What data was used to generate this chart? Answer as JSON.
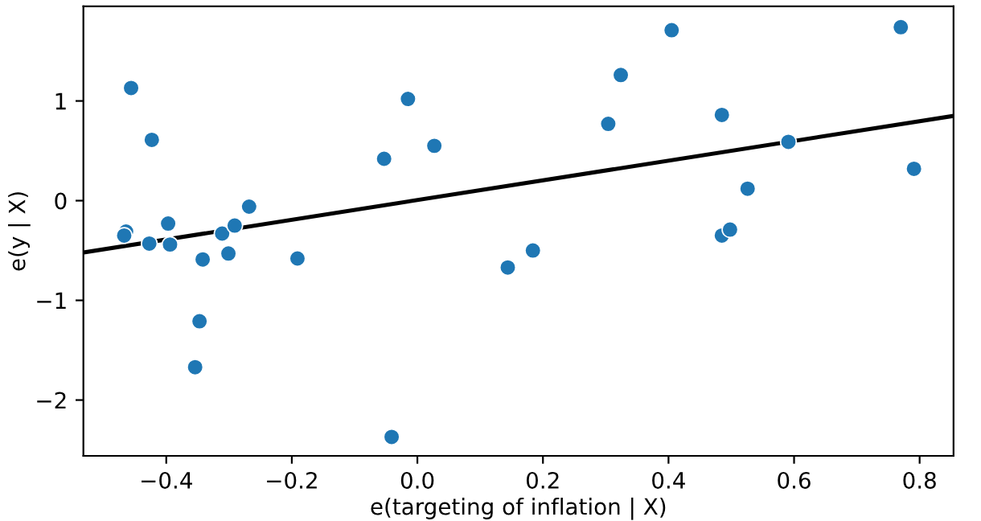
{
  "chart_data": {
    "type": "scatter",
    "xlabel": "e(targeting of inflation | X)",
    "ylabel": "e(y | X)",
    "xlim": [
      -0.532,
      0.854
    ],
    "ylim": [
      -2.56,
      1.95
    ],
    "xticks": [
      {
        "value": -0.4,
        "label": "−0.4"
      },
      {
        "value": -0.2,
        "label": "−0.2"
      },
      {
        "value": 0,
        "label": "0.0"
      },
      {
        "value": 0.2,
        "label": "0.2"
      },
      {
        "value": 0.4,
        "label": "0.4"
      },
      {
        "value": 0.6,
        "label": "0.6"
      },
      {
        "value": 0.8,
        "label": "0.8"
      }
    ],
    "yticks": [
      {
        "value": -2,
        "label": "−2"
      },
      {
        "value": -1,
        "label": "−1"
      },
      0,
      1
    ],
    "grid": false,
    "legend": false,
    "series": [
      {
        "color": "#1f77b4",
        "marker": "circle",
        "x": [
          -0.456,
          -0.423,
          -0.464,
          -0.467,
          -0.427,
          -0.397,
          -0.394,
          -0.342,
          -0.347,
          -0.354,
          -0.311,
          -0.301,
          -0.291,
          -0.268,
          -0.191,
          -0.053,
          -0.015,
          -0.041,
          0.027,
          0.144,
          0.184,
          0.304,
          0.324,
          0.405,
          0.485,
          0.485,
          0.498,
          0.526,
          0.591,
          0.77,
          0.791
        ],
        "values": [
          1.13,
          0.61,
          -0.31,
          -0.35,
          -0.43,
          -0.23,
          -0.44,
          -0.59,
          -1.21,
          -1.67,
          -0.33,
          -0.53,
          -0.25,
          -0.06,
          -0.58,
          0.42,
          1.02,
          -2.37,
          0.55,
          -0.67,
          -0.5,
          0.77,
          1.26,
          1.71,
          0.86,
          -0.35,
          -0.29,
          0.12,
          0.59,
          1.74,
          0.32
        ]
      },
      {
        "type": "line",
        "color": "#000000",
        "line_style": "solid",
        "x": [
          -0.532,
          0.854
        ],
        "values": [
          -0.52,
          0.85
        ]
      }
    ]
  }
}
